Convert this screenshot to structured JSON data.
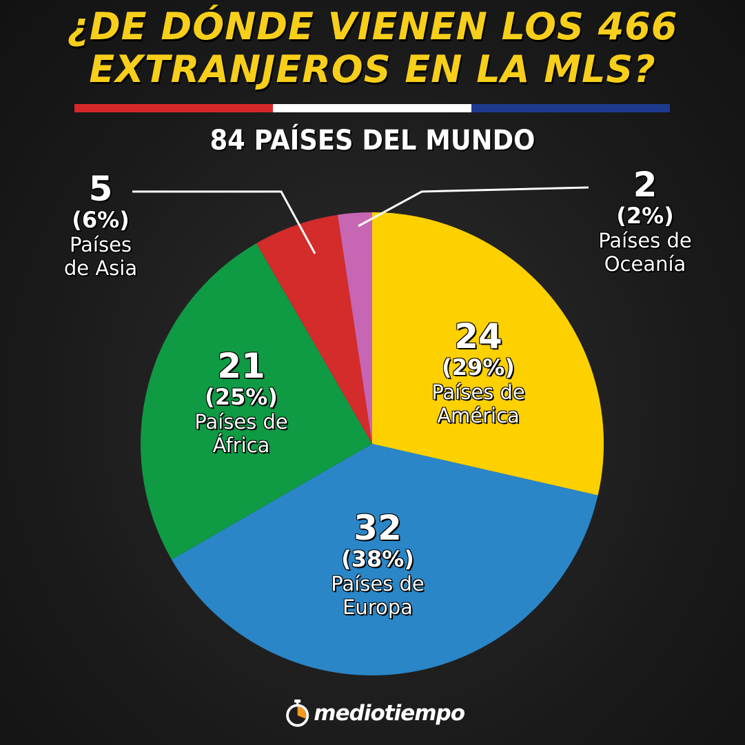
{
  "title": {
    "line1": "¿DE DÓNDE VIENEN LOS 466",
    "line2": "EXTRANJEROS EN LA MLS?"
  },
  "stripe_colors": [
    "#d62828",
    "#ffffff",
    "#1d3a8f"
  ],
  "subtitle": "84 PAÍSES DEL MUNDO",
  "chart_data": {
    "type": "pie",
    "start_angle_deg": 0,
    "slices": [
      {
        "key": "america",
        "value": 24,
        "value_label": "24",
        "pct_label": "(29%)",
        "line1": "Países de",
        "line2": "América",
        "color": "#fdd000"
      },
      {
        "key": "europa",
        "value": 32,
        "value_label": "32",
        "pct_label": "(38%)",
        "line1": "Países de",
        "line2": "Europa",
        "color": "#2a86c7"
      },
      {
        "key": "africa",
        "value": 21,
        "value_label": "21",
        "pct_label": "(25%)",
        "line1": "Países de",
        "line2": "África",
        "color": "#0f9a44"
      },
      {
        "key": "asia",
        "value": 5,
        "value_label": "5",
        "pct_label": "(6%)",
        "line1": "Países",
        "line2": "de Asia",
        "color": "#d42b2b"
      },
      {
        "key": "oceania",
        "value": 2,
        "value_label": "2",
        "pct_label": "(2%)",
        "line1": "Países de",
        "line2": "Oceanía",
        "color": "#c766b2"
      }
    ]
  },
  "logo": {
    "text": "mediotiempo"
  }
}
